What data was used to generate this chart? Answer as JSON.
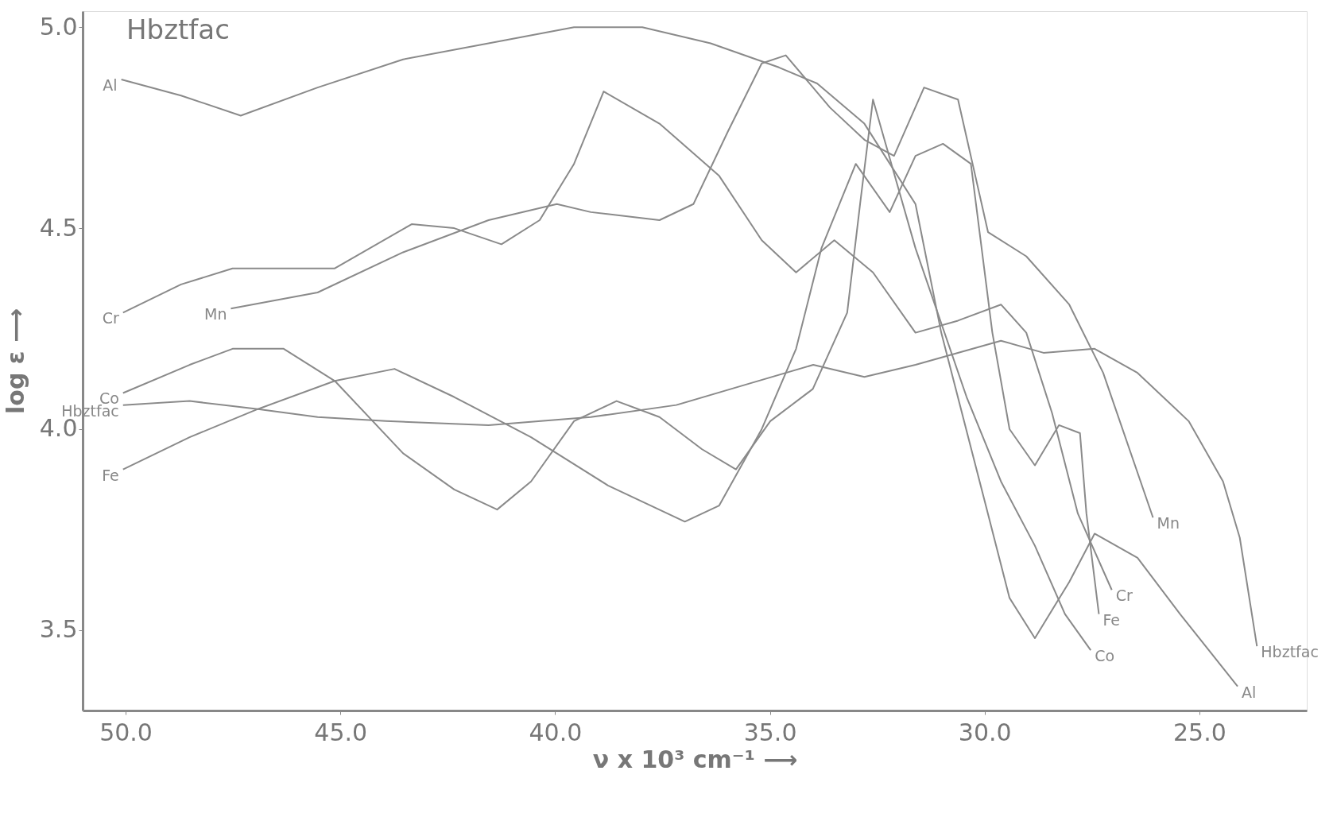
{
  "chart_data": {
    "type": "line",
    "title": "Hbztfac",
    "xlabel": "ν x 10³ cm⁻¹ ⟶",
    "ylabel": "log ε ⟶",
    "xlim": [
      51,
      22.5
    ],
    "ylim": [
      3.3,
      5.04
    ],
    "xticks": [
      {
        "value": 50,
        "label": "50.0"
      },
      {
        "value": 45,
        "label": "45.0"
      },
      {
        "value": 40,
        "label": "40.0"
      },
      {
        "value": 35,
        "label": "35.0"
      },
      {
        "value": 30,
        "label": "30.0"
      },
      {
        "value": 25,
        "label": "25.0"
      }
    ],
    "yticks": [
      {
        "value": 5,
        "label": "5.0"
      },
      {
        "value": 4.5,
        "label": "4.5"
      },
      {
        "value": 4,
        "label": "4.0"
      },
      {
        "value": 3.5,
        "label": "3.5"
      }
    ],
    "grid": false,
    "marker": "none",
    "line_style": "solid",
    "series": [
      {
        "name": "Al",
        "color": "#8a8a8a",
        "x": [
          50.1,
          48.71,
          47.32,
          45.53,
          43.54,
          41.55,
          39.56,
          37.97,
          36.38,
          34.79,
          33.9,
          32.8,
          31.61,
          31.01,
          30.02,
          29.42,
          28.83,
          28.03,
          27.44,
          26.44,
          25.45,
          24.11
        ],
        "values": [
          4.87,
          4.83,
          4.78,
          4.85,
          4.92,
          4.96,
          5.0,
          5.0,
          4.96,
          4.9,
          4.86,
          4.76,
          4.56,
          4.24,
          3.83,
          3.58,
          3.48,
          3.62,
          3.74,
          3.68,
          3.54,
          3.36
        ]
      },
      {
        "name": "Cr",
        "color": "#8a8a8a",
        "x": [
          50.06,
          48.71,
          47.51,
          45.13,
          43.34,
          42.35,
          41.25,
          40.36,
          39.56,
          38.87,
          37.57,
          36.18,
          35.19,
          34.39,
          33.5,
          32.6,
          31.61,
          30.62,
          29.62,
          29.03,
          28.43,
          27.83,
          27.04
        ],
        "values": [
          4.29,
          4.36,
          4.4,
          4.4,
          4.51,
          4.5,
          4.46,
          4.52,
          4.66,
          4.84,
          4.76,
          4.63,
          4.47,
          4.39,
          4.47,
          4.39,
          4.24,
          4.27,
          4.31,
          4.24,
          4.04,
          3.79,
          3.6
        ]
      },
      {
        "name": "Mn",
        "color": "#8a8a8a",
        "x": [
          47.55,
          45.53,
          43.54,
          41.55,
          39.96,
          39.17,
          37.57,
          36.78,
          35.98,
          35.19,
          34.63,
          33.6,
          32.8,
          32.11,
          31.41,
          30.62,
          29.92,
          29.03,
          28.03,
          27.24,
          26.08
        ],
        "values": [
          4.3,
          4.34,
          4.44,
          4.52,
          4.56,
          4.54,
          4.52,
          4.56,
          4.74,
          4.91,
          4.93,
          4.8,
          4.72,
          4.68,
          4.85,
          4.82,
          4.49,
          4.43,
          4.31,
          4.14,
          3.78
        ]
      },
      {
        "name": "Co",
        "color": "#8a8a8a",
        "x": [
          50.06,
          48.51,
          47.51,
          46.32,
          45.13,
          43.54,
          42.35,
          41.35,
          40.56,
          39.56,
          38.57,
          37.57,
          36.58,
          35.79,
          34.99,
          34.0,
          33.2,
          32.9,
          32.6,
          31.61,
          30.42,
          29.62,
          28.83,
          28.13,
          27.53
        ],
        "values": [
          4.09,
          4.16,
          4.2,
          4.2,
          4.12,
          3.94,
          3.85,
          3.8,
          3.87,
          4.02,
          4.07,
          4.03,
          3.95,
          3.9,
          4.02,
          4.1,
          4.29,
          4.56,
          4.82,
          4.45,
          4.08,
          3.87,
          3.71,
          3.54,
          3.45
        ]
      },
      {
        "name": "Hbztfac",
        "color": "#8a8a8a",
        "x": [
          50.06,
          48.51,
          46.92,
          45.53,
          43.94,
          41.55,
          39.17,
          37.18,
          35.59,
          33.99,
          32.8,
          31.61,
          29.62,
          28.63,
          27.44,
          26.44,
          25.25,
          24.45,
          24.06,
          23.66
        ],
        "values": [
          4.06,
          4.07,
          4.05,
          4.03,
          4.02,
          4.01,
          4.03,
          4.06,
          4.11,
          4.16,
          4.13,
          4.16,
          4.22,
          4.19,
          4.2,
          4.14,
          4.02,
          3.87,
          3.73,
          3.46
        ]
      },
      {
        "name": "Fe",
        "color": "#8a8a8a",
        "x": [
          50.06,
          48.51,
          46.92,
          45.13,
          43.74,
          42.35,
          40.56,
          38.77,
          36.98,
          36.18,
          35.19,
          34.39,
          33.8,
          33.0,
          32.21,
          31.61,
          30.97,
          30.32,
          29.82,
          29.42,
          28.83,
          28.27,
          27.78,
          27.63,
          27.34
        ],
        "values": [
          3.9,
          3.98,
          4.05,
          4.12,
          4.15,
          4.08,
          3.98,
          3.86,
          3.77,
          3.81,
          4.0,
          4.2,
          4.45,
          4.66,
          4.54,
          4.68,
          4.71,
          4.66,
          4.24,
          4.0,
          3.91,
          4.01,
          3.99,
          3.79,
          3.54
        ]
      }
    ]
  }
}
